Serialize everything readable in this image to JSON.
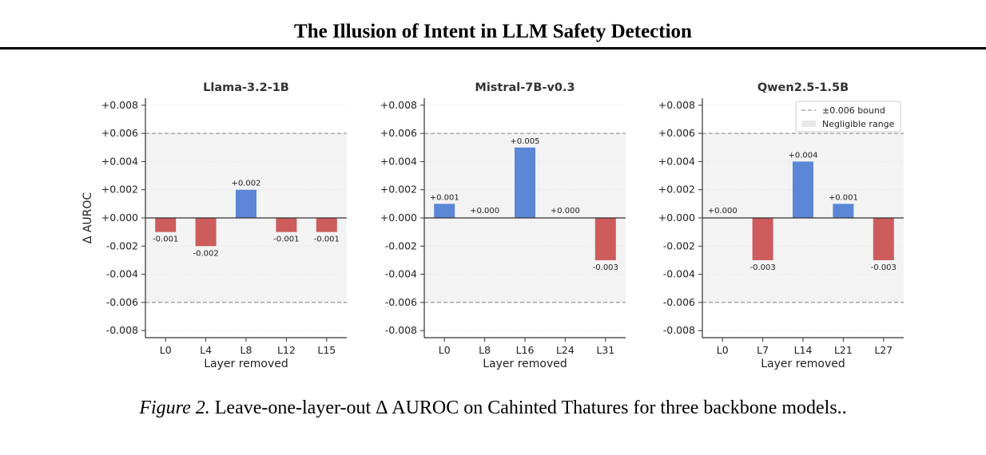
{
  "header": {
    "title": "The Illusion of Intent in LLM Safety Detection"
  },
  "caption": {
    "label": "Figure 2.",
    "text": "Leave-one-layer-out Δ AUROC on Cahinted Thatures for three backbone models.."
  },
  "colors": {
    "positive": "#5b87d6",
    "negative": "#cd5c5c",
    "band": "#f3f3f3",
    "bound": "#999999"
  },
  "legend": {
    "bound_label": "±0.006 bound",
    "range_label": "Negligible range"
  },
  "chart_data": [
    {
      "type": "bar",
      "title": "Llama-3.2-1B",
      "xlabel": "Layer removed",
      "ylabel": "Δ AUROC",
      "ylim": [
        -0.0085,
        0.0085
      ],
      "yticks": [
        "+0.008",
        "+0.006",
        "+0.004",
        "+0.002",
        "+0.000",
        "-0.002",
        "-0.004",
        "-0.006",
        "-0.008"
      ],
      "bound": 0.006,
      "categories": [
        "L0",
        "L4",
        "L8",
        "L12",
        "L15"
      ],
      "values": [
        -0.001,
        -0.002,
        0.002,
        -0.001,
        -0.001
      ],
      "labels": [
        "-0.001",
        "-0.002",
        "+0.002",
        "-0.001",
        "-0.001"
      ]
    },
    {
      "type": "bar",
      "title": "Mistral-7B-v0.3",
      "xlabel": "Layer removed",
      "ylabel": "",
      "ylim": [
        -0.0085,
        0.0085
      ],
      "yticks": [
        "+0.008",
        "+0.006",
        "+0.004",
        "+0.002",
        "+0.000",
        "-0.002",
        "-0.004",
        "-0.006",
        "-0.008"
      ],
      "bound": 0.006,
      "categories": [
        "L0",
        "L8",
        "L16",
        "L24",
        "L31"
      ],
      "values": [
        0.001,
        0.0,
        0.005,
        0.0,
        -0.003
      ],
      "labels": [
        "+0.001",
        "+0.000",
        "+0.005",
        "+0.000",
        "-0.003"
      ]
    },
    {
      "type": "bar",
      "title": "Qwen2.5-1.5B",
      "xlabel": "Layer removed",
      "ylabel": "",
      "ylim": [
        -0.0085,
        0.0085
      ],
      "yticks": [
        "+0.008",
        "+0.006",
        "+0.004",
        "+0.002",
        "+0.000",
        "-0.002",
        "-0.004",
        "-0.006",
        "-0.008"
      ],
      "bound": 0.006,
      "legend": "top-right",
      "categories": [
        "L0",
        "L7",
        "L14",
        "L21",
        "L27"
      ],
      "values": [
        0.0,
        -0.003,
        0.004,
        0.001,
        -0.003
      ],
      "labels": [
        "+0.000",
        "-0.003",
        "+0.004",
        "+0.001",
        "-0.003"
      ]
    }
  ]
}
